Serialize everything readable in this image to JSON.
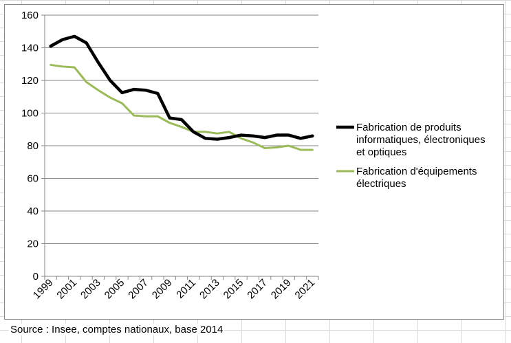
{
  "chart_data": {
    "type": "line",
    "title": "",
    "xlabel": "",
    "ylabel": "",
    "ylim": [
      0,
      160
    ],
    "yticks": [
      0,
      20,
      40,
      60,
      80,
      100,
      120,
      140,
      160
    ],
    "x": [
      1999,
      2000,
      2001,
      2002,
      2003,
      2004,
      2005,
      2006,
      2007,
      2008,
      2009,
      2010,
      2011,
      2012,
      2013,
      2014,
      2015,
      2016,
      2017,
      2018,
      2019,
      2020,
      2021
    ],
    "xtick_labels": [
      "1999",
      "2001",
      "2003",
      "2005",
      "2007",
      "2009",
      "2011",
      "2013",
      "2015",
      "2017",
      "2019",
      "2021"
    ],
    "grid": true,
    "legend_position": "right",
    "series": [
      {
        "name": "Fabrication de produits informatiques, électroniques et optiques",
        "legend_lines": [
          "Fabrication de produits",
          "informatiques, électroniques",
          "et optiques"
        ],
        "color": "#000000",
        "values": [
          141,
          145,
          147,
          143,
          131,
          120,
          112.5,
          114.5,
          114,
          112,
          97,
          96,
          88.5,
          84.5,
          84,
          85,
          86.5,
          86,
          85,
          86.5,
          86.5,
          84.5,
          86
        ]
      },
      {
        "name": "Fabrication d'équipements électriques",
        "legend_lines": [
          "Fabrication d'équipements",
          "électriques"
        ],
        "color": "#9bbb59",
        "values": [
          129.5,
          128.5,
          128,
          119,
          114,
          109.5,
          106,
          98.5,
          98,
          98,
          94,
          91.5,
          88.5,
          88.5,
          87.5,
          88.5,
          84.5,
          82,
          78.5,
          79,
          80,
          77.5,
          77.5
        ]
      }
    ]
  },
  "source": "Source : Insee, comptes nationaux, base 2014"
}
